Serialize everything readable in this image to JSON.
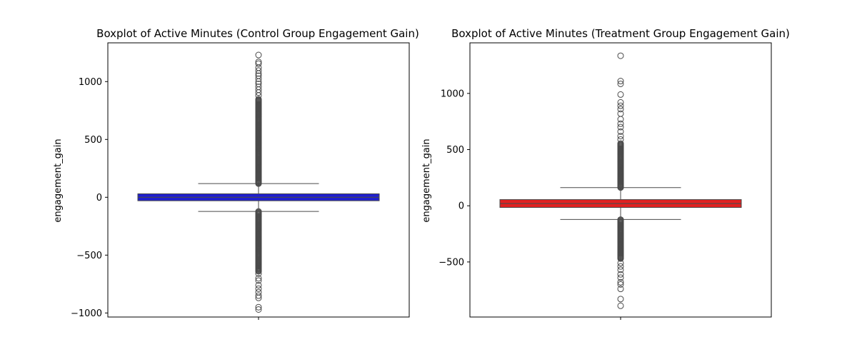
{
  "chart_data": [
    {
      "type": "box",
      "title": "Boxplot of Active Minutes (Control Group Engagement Gain)",
      "xlabel": "",
      "ylabel": "engagement_gain",
      "ylim": [
        -1035,
        1335
      ],
      "yticks": [
        -1000,
        -500,
        0,
        500,
        1000
      ],
      "ytick_labels": [
        "−1000",
        "−500",
        "0",
        "500",
        "1000"
      ],
      "grid": false,
      "color": "#1f1fcf",
      "box": {
        "q1": -30,
        "median": 0,
        "q3": 30,
        "whisker_low": -122,
        "whisker_high": 118
      },
      "outlier_range_high": [
        118,
        850
      ],
      "outlier_range_low": [
        -122,
        -640
      ],
      "outliers_sparse": [
        1230,
        1170,
        1155,
        1120,
        1095,
        1070,
        1050,
        1025,
        1000,
        980,
        955,
        930,
        905,
        880,
        -660,
        -700,
        -720,
        -760,
        -790,
        -820,
        -850,
        -870,
        -950,
        -970
      ]
    },
    {
      "type": "box",
      "title": "Boxplot of Active Minutes (Treatment Group Engagement Gain)",
      "xlabel": "",
      "ylabel": "engagement_gain",
      "ylim": [
        -990,
        1450
      ],
      "yticks": [
        -500,
        0,
        500,
        1000
      ],
      "ytick_labels": [
        "−500",
        "0",
        "500",
        "1000"
      ],
      "grid": false,
      "color": "#e02121",
      "box": {
        "q1": -15,
        "median": 20,
        "q3": 55,
        "whisker_low": -122,
        "whisker_high": 162
      },
      "outlier_range_high": [
        162,
        560
      ],
      "outlier_range_low": [
        -122,
        -470
      ],
      "outliers_sparse": [
        1335,
        1110,
        1085,
        990,
        920,
        890,
        860,
        820,
        770,
        730,
        700,
        660,
        620,
        590,
        -510,
        -540,
        -570,
        -610,
        -640,
        -680,
        -700,
        -740,
        -830,
        -890
      ]
    }
  ]
}
